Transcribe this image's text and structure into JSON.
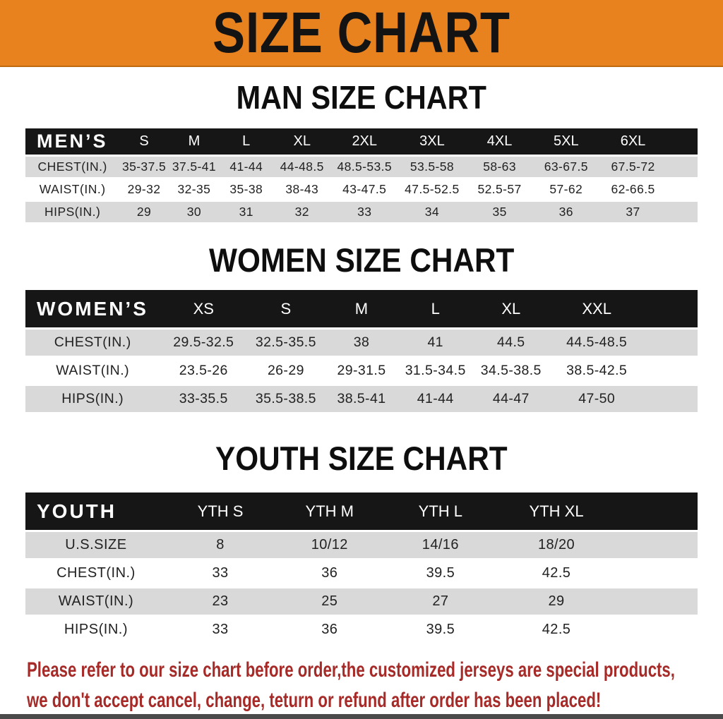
{
  "banner": {
    "title": "SIZE CHART",
    "bg_color": "#E8821F"
  },
  "sections": [
    {
      "key": "mens",
      "title": "MAN SIZE CHART",
      "header_label": "MEN’S",
      "columns": [
        "S",
        "M",
        "L",
        "XL",
        "2XL",
        "3XL",
        "4XL",
        "5XL",
        "6XL"
      ],
      "rows": [
        {
          "label": "CHEST(IN.)",
          "values": [
            "35-37.5",
            "37.5-41",
            "41-44",
            "44-48.5",
            "48.5-53.5",
            "53.5-58",
            "58-63",
            "63-67.5",
            "67.5-72"
          ]
        },
        {
          "label": "WAIST(IN.)",
          "values": [
            "29-32",
            "32-35",
            "35-38",
            "38-43",
            "43-47.5",
            "47.5-52.5",
            "52.5-57",
            "57-62",
            "62-66.5"
          ]
        },
        {
          "label": "HIPS(IN.)",
          "values": [
            "29",
            "30",
            "31",
            "32",
            "33",
            "34",
            "35",
            "36",
            "37"
          ]
        }
      ]
    },
    {
      "key": "womens",
      "title": "WOMEN SIZE CHART",
      "header_label": "WOMEN’S",
      "columns": [
        "XS",
        "S",
        "M",
        "L",
        "XL",
        "XXL"
      ],
      "rows": [
        {
          "label": "CHEST(IN.)",
          "values": [
            "29.5-32.5",
            "32.5-35.5",
            "38",
            "41",
            "44.5",
            "44.5-48.5"
          ]
        },
        {
          "label": "WAIST(IN.)",
          "values": [
            "23.5-26",
            "26-29",
            "29-31.5",
            "31.5-34.5",
            "34.5-38.5",
            "38.5-42.5"
          ]
        },
        {
          "label": "HIPS(IN.)",
          "values": [
            "33-35.5",
            "35.5-38.5",
            "38.5-41",
            "41-44",
            "44-47",
            "47-50"
          ]
        }
      ]
    },
    {
      "key": "youth",
      "title": "YOUTH SIZE CHART",
      "header_label": "YOUTH",
      "columns": [
        "YTH S",
        "YTH M",
        "YTH L",
        "YTH XL"
      ],
      "rows": [
        {
          "label": "U.S.SIZE",
          "values": [
            "8",
            "10/12",
            "14/16",
            "18/20"
          ]
        },
        {
          "label": "CHEST(IN.)",
          "values": [
            "33",
            "36",
            "39.5",
            "42.5"
          ]
        },
        {
          "label": "WAIST(IN.)",
          "values": [
            "23",
            "25",
            "27",
            "29"
          ]
        },
        {
          "label": "HIPS(IN.)",
          "values": [
            "33",
            "36",
            "39.5",
            "42.5"
          ]
        }
      ]
    }
  ],
  "footer": {
    "line1": "Please refer to our size chart before order,the customized jerseys are special products,",
    "line2": "we don't accept cancel, change, teturn or refund after order has been placed!",
    "text_color": "#A62B28"
  }
}
